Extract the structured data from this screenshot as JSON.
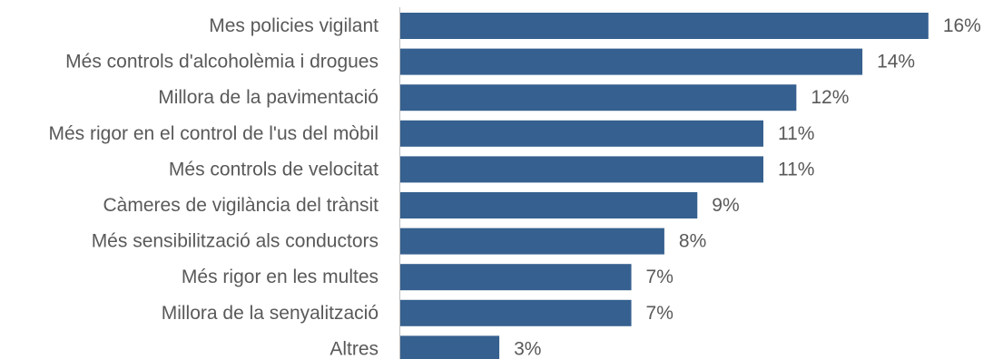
{
  "chart_data": {
    "type": "bar",
    "orientation": "horizontal",
    "categories": [
      "Mes policies vigilant",
      "Més controls d'alcoholèmia i drogues",
      "Millora de la pavimentació",
      "Més rigor en el control de l'us del mòbil",
      "Més controls de velocitat",
      "Càmeres de vigilància del trànsit",
      "Més sensibilització als conductors",
      "Més rigor en les multes",
      "Millora de la senyalització",
      "Altres"
    ],
    "values": [
      16,
      14,
      12,
      11,
      11,
      9,
      8,
      7,
      7,
      3
    ],
    "value_labels": [
      "16%",
      "14%",
      "12%",
      "11%",
      "11%",
      "9%",
      "8%",
      "7%",
      "7%",
      "3%"
    ],
    "bar_color": "#36608f",
    "title": "",
    "xlabel": "",
    "ylabel": "",
    "xlim": [
      0,
      16.5
    ],
    "grid": false,
    "legend": "none"
  }
}
